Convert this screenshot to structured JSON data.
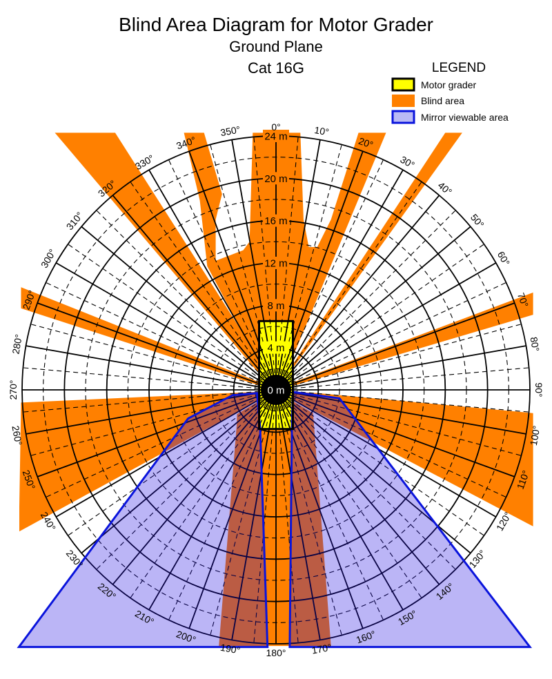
{
  "title": {
    "main": "Blind Area Diagram for Motor Grader",
    "sub1": "Ground Plane",
    "sub2": "Cat 16G"
  },
  "legend": {
    "heading": "LEGEND",
    "items": [
      {
        "label": "Motor grader",
        "fill": "#ffff00",
        "stroke": "#000000"
      },
      {
        "label": "Blind area",
        "fill": "#ff8000",
        "stroke": "none"
      },
      {
        "label": "Mirror viewable area",
        "fill": "#babaf5",
        "stroke": "#0a14dc"
      }
    ]
  },
  "diagram": {
    "max_range_m": 24,
    "ring_step_m": 2,
    "spoke_step_deg": 5,
    "range_labels": [
      "0 m",
      "4 m",
      "8 m",
      "12 m",
      "16 m",
      "20 m",
      "24 m"
    ],
    "angle_labels": [
      "0°",
      "10°",
      "20°",
      "30°",
      "40°",
      "50°",
      "60°",
      "70°",
      "80°",
      "90°",
      "100°",
      "110°",
      "120°",
      "130°",
      "140°",
      "150°",
      "160°",
      "170°",
      "180°",
      "190°",
      "200°",
      "210°",
      "220°",
      "230°",
      "240°",
      "250°",
      "260°",
      "270°",
      "280°",
      "290°",
      "300°",
      "310°",
      "320°",
      "330°",
      "340°",
      "350°"
    ],
    "colors": {
      "blind": "#ff8000",
      "grader": "#ffff00",
      "mirror_stroke": "#0a14dc",
      "mirror_fill": "#1e0ae1"
    },
    "grader_m": {
      "left": -1.6,
      "right": 1.6,
      "front": 6.5,
      "rear": -3.7
    },
    "blind_areas_m": [
      [
        [
          -20.9,
          24.3
        ],
        [
          -15.2,
          24.3
        ],
        [
          0.3,
          0
        ],
        [
          -0.3,
          0
        ]
      ],
      [
        [
          -8.7,
          24.3
        ],
        [
          -6.8,
          24.3
        ],
        [
          -5.1,
          18.5
        ],
        [
          -5.7,
          16.1
        ],
        [
          -5.7,
          12.2
        ],
        [
          -3.1,
          13.2
        ],
        [
          -2.5,
          14.0
        ],
        [
          -2.2,
          24.3
        ],
        [
          2.3,
          24.3
        ],
        [
          2.6,
          16.1
        ],
        [
          3.1,
          13.5
        ],
        [
          3.9,
          13.5
        ],
        [
          5.2,
          16.1
        ],
        [
          7.8,
          24.3
        ],
        [
          10.4,
          24.3
        ],
        [
          0.3,
          0
        ],
        [
          -0.3,
          0
        ],
        [
          -6.5,
          11.7
        ],
        [
          -7.2,
          17.9
        ]
      ],
      [
        [
          16.0,
          24.3
        ],
        [
          17.6,
          24.3
        ],
        [
          0.2,
          0.1
        ],
        [
          0,
          0
        ]
      ],
      [
        [
          24.3,
          9.2
        ],
        [
          24.3,
          7.1
        ],
        [
          0,
          -0.1
        ],
        [
          0,
          0.1
        ]
      ],
      [
        [
          -24.1,
          9.7
        ],
        [
          -24.1,
          7.7
        ],
        [
          0,
          -0.1
        ],
        [
          0,
          0.1
        ]
      ],
      [
        [
          -24.1,
          -1.2
        ],
        [
          -4.4,
          -0.3
        ],
        [
          0,
          -0.1
        ],
        [
          -24.3,
          -13.4
        ]
      ],
      [
        [
          3.9,
          -0.3
        ],
        [
          24.3,
          -2.2
        ],
        [
          24.3,
          -12.9
        ],
        [
          0,
          -0.1
        ]
      ],
      [
        [
          0,
          -0.1
        ],
        [
          -3.7,
          -2.3
        ],
        [
          -3.7,
          -3.1
        ],
        [
          -5.4,
          -24.2
        ],
        [
          5.2,
          -24.2
        ],
        [
          3.5,
          -2.2
        ]
      ]
    ],
    "mirror_areas_m": [
      [
        [
          -1.8,
          -0.3
        ],
        [
          -4.1,
          -0.5
        ],
        [
          -8.3,
          -2.7
        ],
        [
          -24.3,
          -24.3
        ],
        [
          -0.8,
          -24.3
        ],
        [
          -1.5,
          -3.6
        ]
      ],
      [
        [
          1.6,
          -0.2
        ],
        [
          6.0,
          -0.8
        ],
        [
          24.0,
          -24.3
        ],
        [
          1.3,
          -24.3
        ],
        [
          1.5,
          -3.7
        ]
      ]
    ]
  }
}
